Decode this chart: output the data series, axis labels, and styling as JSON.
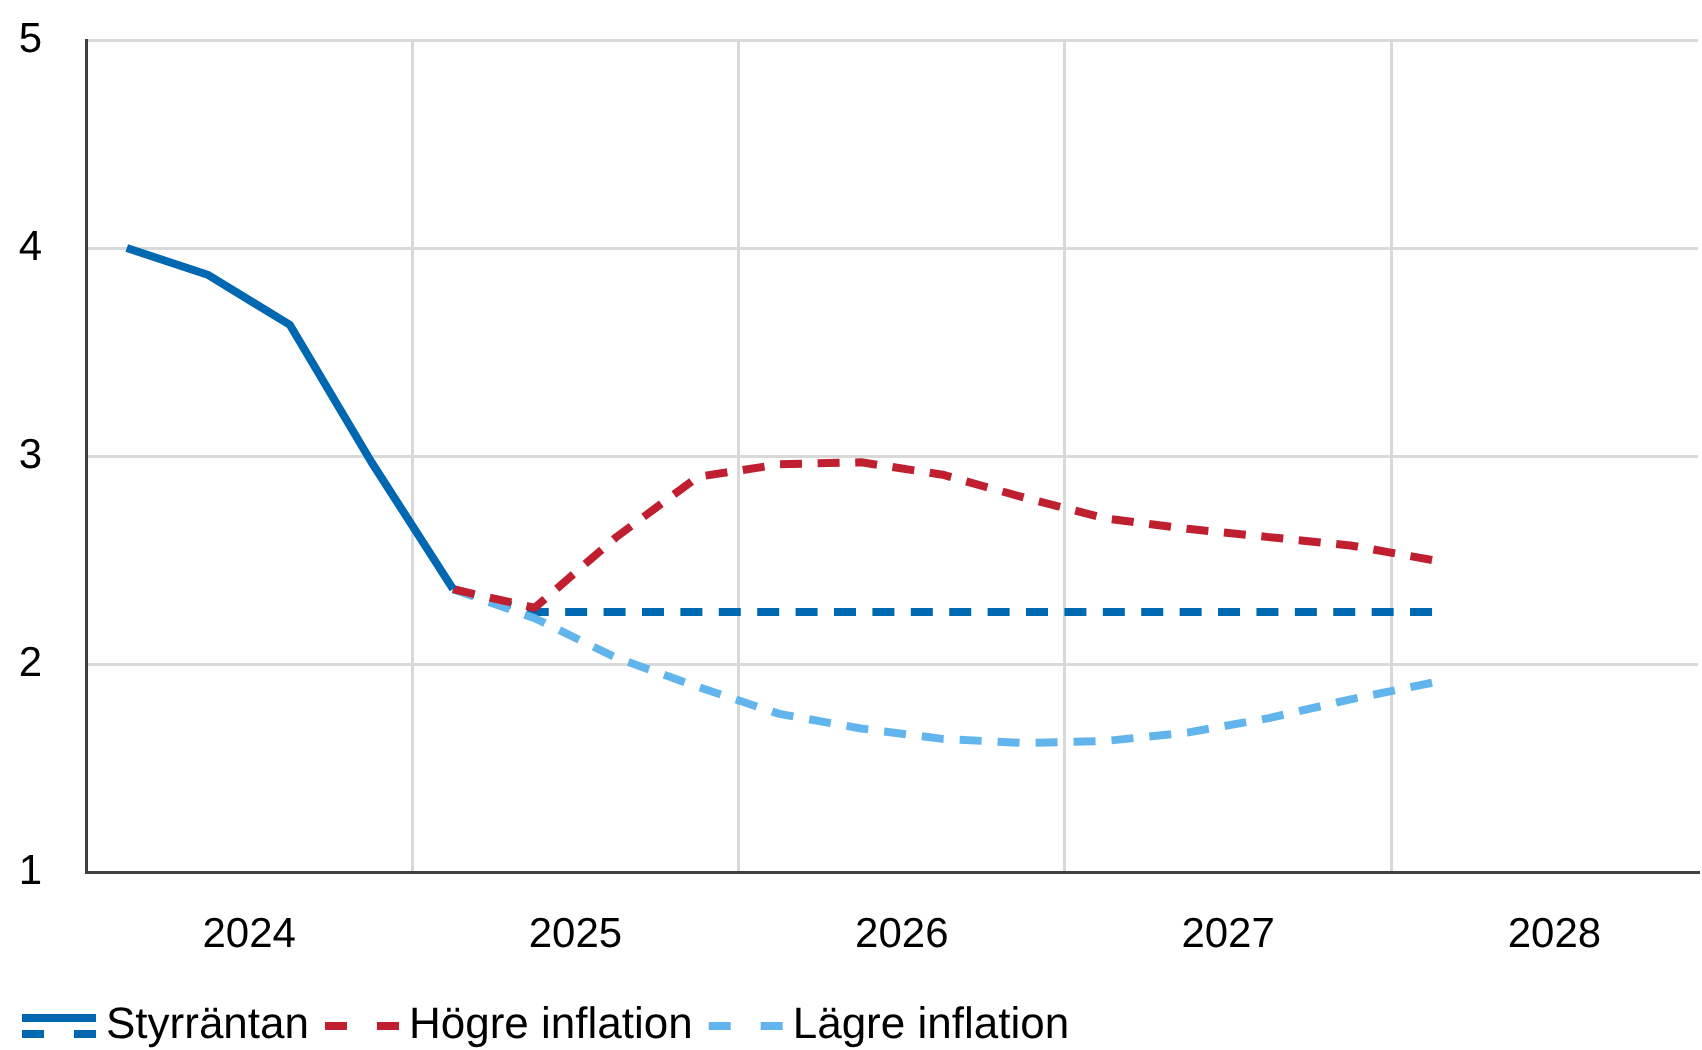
{
  "chart_data": {
    "type": "line",
    "series": [
      {
        "name": "Styrräntan",
        "color": "#0067b1",
        "line_style": "solid",
        "x": [
          2024.125,
          2024.375,
          2024.625,
          2024.875,
          2025.125
        ],
        "values": [
          4.0,
          3.87,
          3.63,
          2.97,
          2.36
        ]
      },
      {
        "color": "#0067b1",
        "line_style": "dashed",
        "x": [
          2025.125,
          2025.375,
          2025.625,
          2025.875,
          2026.125,
          2026.375,
          2026.625,
          2026.875,
          2027.125,
          2027.375,
          2027.625,
          2027.875,
          2028.125
        ],
        "values": [
          2.36,
          2.25,
          2.25,
          2.25,
          2.25,
          2.25,
          2.25,
          2.25,
          2.25,
          2.25,
          2.25,
          2.25,
          2.25
        ]
      },
      {
        "name": "Högre inflation",
        "color": "#c01f2f",
        "line_style": "dashed",
        "x": [
          2025.125,
          2025.375,
          2025.625,
          2025.875,
          2026.125,
          2026.375,
          2026.625,
          2026.875,
          2027.125,
          2027.375,
          2027.625,
          2027.875,
          2028.125
        ],
        "values": [
          2.36,
          2.27,
          2.61,
          2.9,
          2.96,
          2.97,
          2.91,
          2.8,
          2.7,
          2.65,
          2.61,
          2.57,
          2.5
        ]
      },
      {
        "name": "Lägre inflation",
        "color": "#62b5ec",
        "line_style": "dashed",
        "x": [
          2025.125,
          2025.375,
          2025.625,
          2025.875,
          2026.125,
          2026.375,
          2026.625,
          2026.875,
          2027.125,
          2027.375,
          2027.625,
          2027.875,
          2028.125
        ],
        "values": [
          2.36,
          2.22,
          2.03,
          1.89,
          1.76,
          1.69,
          1.64,
          1.62,
          1.63,
          1.67,
          1.74,
          1.83,
          1.91
        ]
      }
    ],
    "xlim": [
      2024,
      2028.94
    ],
    "xticks": [
      {
        "value": 2024.5,
        "label": "2024"
      },
      {
        "value": 2025,
        "label": null
      },
      {
        "value": 2025.5,
        "label": "2025"
      },
      {
        "value": 2026,
        "label": null
      },
      {
        "value": 2026.5,
        "label": "2026"
      },
      {
        "value": 2027,
        "label": null
      },
      {
        "value": 2027.5,
        "label": "2027"
      },
      {
        "value": 2028,
        "label": null
      },
      {
        "value": 2028.5,
        "label": "2028"
      }
    ],
    "ylim": [
      1,
      5
    ],
    "yticks": [
      1,
      2,
      3,
      4,
      5
    ],
    "grid": true,
    "legend": "bottom left"
  }
}
